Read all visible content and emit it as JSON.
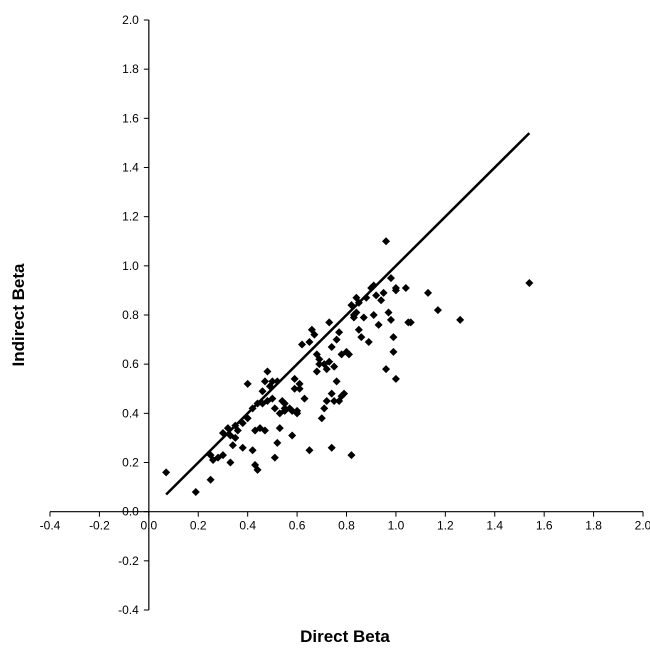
{
  "chart_data": {
    "type": "scatter",
    "title": "",
    "xlabel": "Direct Beta",
    "ylabel": "Indirect Beta",
    "xlim": [
      -0.4,
      2.0
    ],
    "ylim": [
      -0.4,
      2.0
    ],
    "x_ticks": [
      "-0.4",
      "-0.2",
      "0.0",
      "0.2",
      "0.4",
      "0.6",
      "0.8",
      "1.0",
      "1.2",
      "1.4",
      "1.6",
      "1.8",
      "2.0"
    ],
    "y_ticks": [
      "-0.4",
      "-0.2",
      "0.0",
      "0.2",
      "0.4",
      "0.6",
      "0.8",
      "1.0",
      "1.2",
      "1.4",
      "1.6",
      "1.8",
      "2.0"
    ],
    "grid": false,
    "legend": "none",
    "marker": "diamond",
    "marker_color": "#000000",
    "line": {
      "x": [
        0.07,
        1.54
      ],
      "y": [
        0.07,
        1.54
      ],
      "color": "#000000"
    },
    "points": [
      [
        0.07,
        0.16
      ],
      [
        0.19,
        0.08
      ],
      [
        0.25,
        0.13
      ],
      [
        0.25,
        0.23
      ],
      [
        0.26,
        0.21
      ],
      [
        0.28,
        0.22
      ],
      [
        0.3,
        0.23
      ],
      [
        0.3,
        0.32
      ],
      [
        0.32,
        0.34
      ],
      [
        0.33,
        0.2
      ],
      [
        0.33,
        0.31
      ],
      [
        0.34,
        0.27
      ],
      [
        0.35,
        0.35
      ],
      [
        0.35,
        0.3
      ],
      [
        0.36,
        0.33
      ],
      [
        0.38,
        0.26
      ],
      [
        0.38,
        0.36
      ],
      [
        0.4,
        0.38
      ],
      [
        0.4,
        0.52
      ],
      [
        0.42,
        0.42
      ],
      [
        0.42,
        0.25
      ],
      [
        0.43,
        0.19
      ],
      [
        0.43,
        0.33
      ],
      [
        0.44,
        0.17
      ],
      [
        0.44,
        0.44
      ],
      [
        0.45,
        0.34
      ],
      [
        0.46,
        0.44
      ],
      [
        0.46,
        0.49
      ],
      [
        0.47,
        0.33
      ],
      [
        0.47,
        0.53
      ],
      [
        0.48,
        0.45
      ],
      [
        0.48,
        0.57
      ],
      [
        0.49,
        0.51
      ],
      [
        0.5,
        0.46
      ],
      [
        0.5,
        0.53
      ],
      [
        0.51,
        0.22
      ],
      [
        0.51,
        0.42
      ],
      [
        0.52,
        0.53
      ],
      [
        0.52,
        0.28
      ],
      [
        0.53,
        0.4
      ],
      [
        0.53,
        0.34
      ],
      [
        0.54,
        0.45
      ],
      [
        0.55,
        0.41
      ],
      [
        0.55,
        0.42
      ],
      [
        0.55,
        0.44
      ],
      [
        0.57,
        0.42
      ],
      [
        0.58,
        0.31
      ],
      [
        0.58,
        0.41
      ],
      [
        0.59,
        0.5
      ],
      [
        0.59,
        0.54
      ],
      [
        0.6,
        0.41
      ],
      [
        0.6,
        0.4
      ],
      [
        0.61,
        0.5
      ],
      [
        0.61,
        0.52
      ],
      [
        0.62,
        0.68
      ],
      [
        0.63,
        0.46
      ],
      [
        0.65,
        0.25
      ],
      [
        0.65,
        0.69
      ],
      [
        0.66,
        0.74
      ],
      [
        0.67,
        0.72
      ],
      [
        0.68,
        0.64
      ],
      [
        0.68,
        0.57
      ],
      [
        0.69,
        0.6
      ],
      [
        0.69,
        0.62
      ],
      [
        0.7,
        0.38
      ],
      [
        0.71,
        0.42
      ],
      [
        0.71,
        0.6
      ],
      [
        0.72,
        0.45
      ],
      [
        0.72,
        0.58
      ],
      [
        0.73,
        0.61
      ],
      [
        0.73,
        0.77
      ],
      [
        0.74,
        0.26
      ],
      [
        0.74,
        0.48
      ],
      [
        0.74,
        0.67
      ],
      [
        0.75,
        0.45
      ],
      [
        0.75,
        0.59
      ],
      [
        0.76,
        0.53
      ],
      [
        0.76,
        0.7
      ],
      [
        0.77,
        0.45
      ],
      [
        0.77,
        0.73
      ],
      [
        0.78,
        0.64
      ],
      [
        0.78,
        0.47
      ],
      [
        0.79,
        0.48
      ],
      [
        0.8,
        0.65
      ],
      [
        0.81,
        0.64
      ],
      [
        0.82,
        0.23
      ],
      [
        0.82,
        0.84
      ],
      [
        0.83,
        0.79
      ],
      [
        0.83,
        0.8
      ],
      [
        0.84,
        0.87
      ],
      [
        0.84,
        0.81
      ],
      [
        0.85,
        0.85
      ],
      [
        0.85,
        0.74
      ],
      [
        0.86,
        0.71
      ],
      [
        0.87,
        0.79
      ],
      [
        0.88,
        0.87
      ],
      [
        0.89,
        0.69
      ],
      [
        0.9,
        0.91
      ],
      [
        0.91,
        0.92
      ],
      [
        0.91,
        0.8
      ],
      [
        0.92,
        0.88
      ],
      [
        0.93,
        0.76
      ],
      [
        0.94,
        0.86
      ],
      [
        0.95,
        0.89
      ],
      [
        0.96,
        0.58
      ],
      [
        0.96,
        1.1
      ],
      [
        0.97,
        0.81
      ],
      [
        0.98,
        0.78
      ],
      [
        0.98,
        0.95
      ],
      [
        0.99,
        0.65
      ],
      [
        0.99,
        0.71
      ],
      [
        1.0,
        0.54
      ],
      [
        1.0,
        0.91
      ],
      [
        1.0,
        0.9
      ],
      [
        1.04,
        0.91
      ],
      [
        1.05,
        0.77
      ],
      [
        1.06,
        0.77
      ],
      [
        1.13,
        0.89
      ],
      [
        1.17,
        0.82
      ],
      [
        1.26,
        0.78
      ],
      [
        1.54,
        0.93
      ]
    ]
  }
}
